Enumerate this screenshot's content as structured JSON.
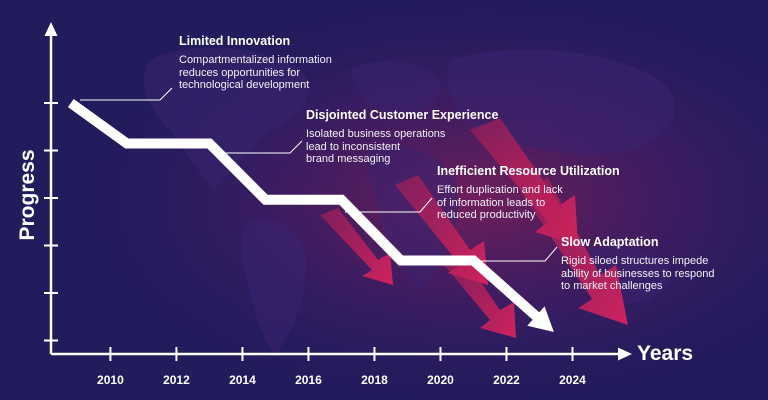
{
  "axes": {
    "y_label": "Progress",
    "x_label": "Years"
  },
  "chart_data": {
    "type": "line",
    "xlabel": "Years",
    "ylabel": "Progress",
    "x_ticks": [
      "2010",
      "2012",
      "2014",
      "2016",
      "2018",
      "2020",
      "2022",
      "2024"
    ],
    "xlim": [
      2008.2,
      2025.5
    ],
    "y_tick_count": 6,
    "grid": false,
    "series": [
      {
        "x": [
          2008.8,
          2010.5,
          2013.0,
          2014.7,
          2017.0,
          2018.8,
          2021.0,
          2023.3
        ],
        "y": [
          1.0,
          0.82,
          0.82,
          0.57,
          0.57,
          0.3,
          0.3,
          0.0
        ]
      }
    ]
  },
  "annotations": [
    {
      "title": "Limited Innovation",
      "text": "Compartmentalized information\nreduces opportunities for\ntechnological development"
    },
    {
      "title": "Disjointed Customer Experience",
      "text": "Isolated business operations\nlead to inconsistent\nbrand messaging"
    },
    {
      "title": "Inefficient Resource Utilization",
      "text": "Effort duplication and lack\nof information leads to\nreduced productivity"
    },
    {
      "title": "Slow Adaptation",
      "text": "Rigid siloed structures impede\nability of businesses to respond\nto market challenges"
    }
  ],
  "colors": {
    "background": "#221b5c",
    "accent": "#e0245e",
    "line": "#ffffff"
  }
}
